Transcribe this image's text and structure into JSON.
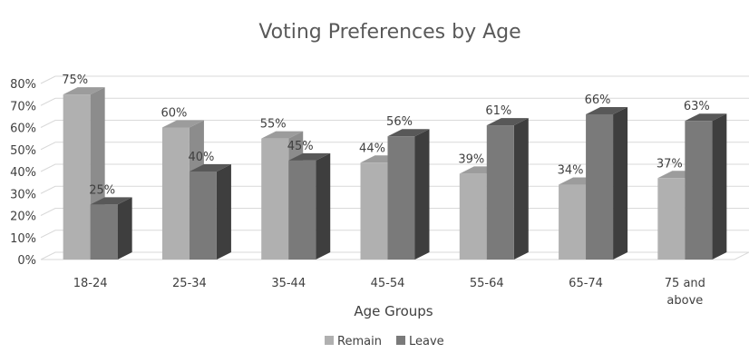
{
  "chart_data": {
    "type": "bar",
    "title": "Voting Preferences by Age",
    "xlabel": "Age Groups",
    "ylabel": "",
    "categories": [
      "18-24",
      "25-34",
      "35-44",
      "45-54",
      "55-64",
      "65-74",
      "75 and\nabove"
    ],
    "series": [
      {
        "name": "Remain",
        "values": [
          75,
          60,
          55,
          44,
          39,
          34,
          37
        ],
        "labels": [
          "75%",
          "60%",
          "55%",
          "44%",
          "39%",
          "34%",
          "37%"
        ]
      },
      {
        "name": "Leave",
        "values": [
          25,
          40,
          45,
          56,
          61,
          66,
          63
        ],
        "labels": [
          "25%",
          "40%",
          "45%",
          "56%",
          "61%",
          "66%",
          "63%"
        ]
      }
    ],
    "ylim": [
      0,
      80
    ],
    "yticks": [
      "0%",
      "10%",
      "20%",
      "30%",
      "40%",
      "50%",
      "60%",
      "70%",
      "80%"
    ],
    "grid": true,
    "legend": "bottom",
    "colors": {
      "Remain": {
        "front": "#b0b0b0",
        "side": "#8c8c8c",
        "top": "#9c9c9c"
      },
      "Leave": {
        "front": "#7a7a7a",
        "side": "#3e3e3e",
        "top": "#585858"
      }
    }
  }
}
